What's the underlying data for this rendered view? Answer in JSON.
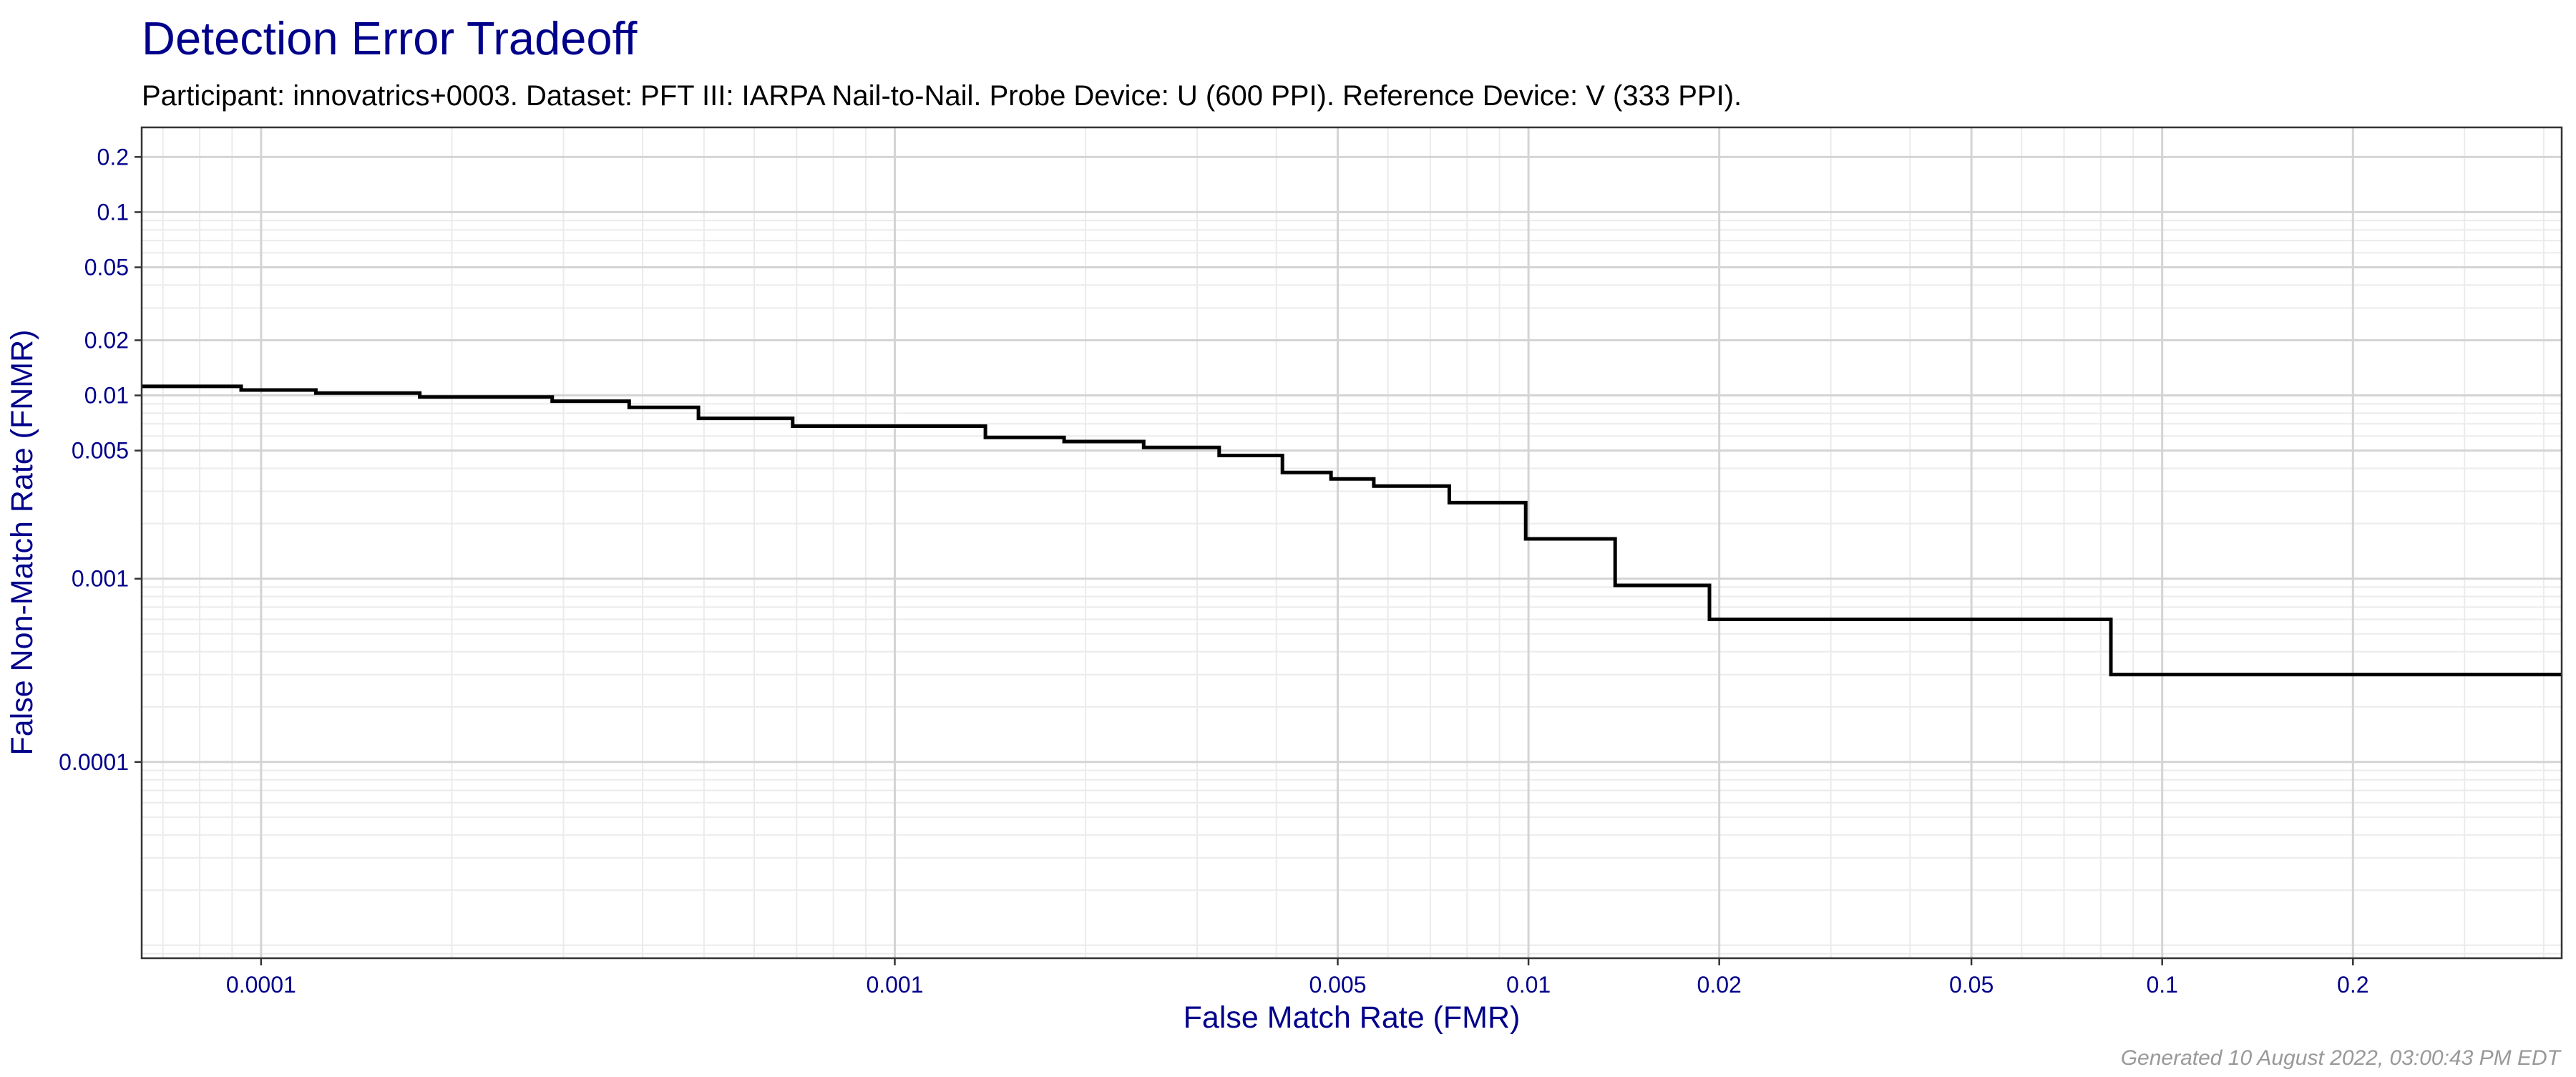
{
  "chart_data": {
    "type": "line",
    "title": "Detection Error Tradeoff",
    "subtitle": "Participant: innovatrics+0003. Dataset: PFT III: IARPA Nail-to-Nail. Probe Device: U (600 PPI). Reference Device: V (333 PPI).",
    "xlabel": "False Match Rate (FMR)",
    "ylabel": "False Non-Match Rate (FNMR)",
    "footer": "Generated 10 August 2022, 03:00:43 PM EDT",
    "x_scale": "log",
    "y_scale": "log",
    "xlim": [
      6.48e-05,
      0.427
    ],
    "ylim": [
      8.5e-06,
      0.29
    ],
    "x_ticks": [
      {
        "value": 0.0001,
        "label": "0.0001"
      },
      {
        "value": 0.001,
        "label": "0.001"
      },
      {
        "value": 0.005,
        "label": "0.005"
      },
      {
        "value": 0.01,
        "label": "0.01"
      },
      {
        "value": 0.02,
        "label": "0.02"
      },
      {
        "value": 0.05,
        "label": "0.05"
      },
      {
        "value": 0.1,
        "label": "0.1"
      },
      {
        "value": 0.2,
        "label": "0.2"
      }
    ],
    "y_ticks": [
      {
        "value": 0.2,
        "label": "0.2"
      },
      {
        "value": 0.1,
        "label": "0.1"
      },
      {
        "value": 0.05,
        "label": "0.05"
      },
      {
        "value": 0.02,
        "label": "0.02"
      },
      {
        "value": 0.01,
        "label": "0.01"
      },
      {
        "value": 0.005,
        "label": "0.005"
      },
      {
        "value": 0.001,
        "label": "0.001"
      },
      {
        "value": 0.0001,
        "label": "0.0001"
      }
    ],
    "grid": true,
    "legend": "none",
    "colors": {
      "title": "#00008b",
      "axis_text": "#00008b",
      "subtitle": "#000000",
      "footer": "#999999",
      "line": "#000000",
      "grid_major": "#d4d4d4",
      "grid_minor": "#ebebeb",
      "panel_border": "#333333"
    },
    "series": [
      {
        "x": [
          6.48e-05,
          9.3e-05,
          0.000122,
          0.000178,
          0.000288,
          0.000381,
          0.00049,
          0.00069,
          0.00139,
          0.00185,
          0.00247,
          0.00325,
          0.00409,
          0.00488,
          0.0057,
          0.0075,
          0.0099,
          0.0137,
          0.0193,
          0.083,
          0.427
        ],
        "y": [
          0.0112,
          0.0107,
          0.0103,
          0.0098,
          0.0093,
          0.0086,
          0.0075,
          0.0068,
          0.0059,
          0.0056,
          0.0052,
          0.0047,
          0.0038,
          0.0035,
          0.0032,
          0.0026,
          0.00165,
          0.00092,
          0.0006,
          0.0003,
          0.0003
        ]
      }
    ]
  }
}
